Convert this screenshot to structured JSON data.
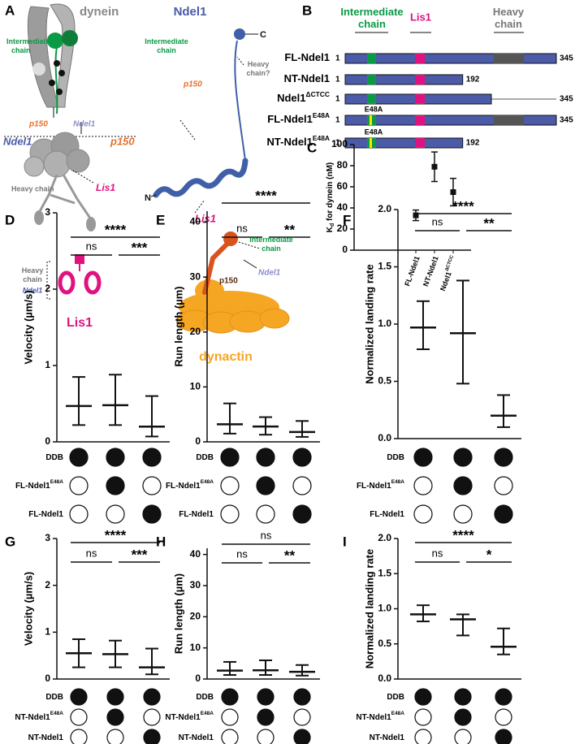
{
  "panel_labels": [
    "A",
    "B",
    "C",
    "D",
    "E",
    "F",
    "G",
    "H",
    "I"
  ],
  "panel_a": {
    "dynein": "dynein",
    "dynein_ic": [
      "Intermediate",
      "chain"
    ],
    "dynein_p150": "p150",
    "dynein_ndel1_small": "Ndel1",
    "dynein_ndel1": "Ndel1",
    "dynein_p150_big": "p150",
    "dynein_heavy_chain": "Heavy chain",
    "dynein_lis1": "Lis1",
    "lis1_heavy_chain": [
      "Heavy",
      "chain"
    ],
    "lis1_ndel1": "Ndel1",
    "lis1_title": "Lis1",
    "ndel1_title": "Ndel1",
    "ndel1_ic": [
      "Intermediate",
      "chain"
    ],
    "ndel1_p150": "p150",
    "ndel1_c": "C",
    "ndel1_heavy": [
      "Heavy",
      "chain?"
    ],
    "ndel1_n": "N",
    "ndel1_lis1": "Lis1",
    "dynactin_ic": [
      "Intermediate",
      "chain"
    ],
    "dynactin_p150": "p150",
    "dynactin_ndel1": "Ndel1",
    "dynactin_title": "dynactin"
  },
  "panel_b": {
    "headers": {
      "intermediate_chain": [
        "Intermediate",
        "chain"
      ],
      "lis1": "Lis1",
      "heavy_chain": [
        "Heavy",
        "chain"
      ]
    },
    "constructs": [
      {
        "name": "FL-Ndel1",
        "start": "1",
        "end": 345
      },
      {
        "name": "NT-Ndel1",
        "start": "1",
        "end": 192
      },
      {
        "name": "Ndel1",
        "sup": "ΔCTCC",
        "start": "1",
        "end": 345
      },
      {
        "name": "FL-Ndel1",
        "sup": "E48A",
        "start": "1",
        "end": 345,
        "mutation": "E48A"
      },
      {
        "name": "NT-Ndel1",
        "sup": "E48A",
        "start": "1",
        "end": 192,
        "mutation": "E48A"
      }
    ]
  },
  "chart_data": [
    {
      "type": "error_point",
      "ylabel": {
        "main": "K",
        "sub": "d",
        "rest": " for dynein (nM)"
      },
      "categories": [
        "FL-Ndel1",
        "NT-Ndel1",
        "Ndel1"
      ],
      "category_sups": [
        null,
        null,
        "ΔCTCC"
      ],
      "values": [
        33,
        79,
        55
      ],
      "errors": [
        5,
        14,
        13
      ],
      "ylim": [
        0,
        100
      ],
      "yticks": [
        0,
        20,
        40,
        60,
        80,
        100
      ]
    },
    {
      "type": "dot_plot",
      "ylabel": "Velocity (µm/s)",
      "ylim": [
        0,
        3
      ],
      "yticks": [
        0,
        1,
        2,
        3
      ],
      "median": [
        0.47,
        0.48,
        0.2
      ],
      "q1": [
        0.22,
        0.22,
        0.07
      ],
      "q3": [
        0.85,
        0.88,
        0.6
      ],
      "significance": [
        "****",
        "ns",
        "***"
      ],
      "conditions": [
        {
          "label": "DDB",
          "filled": [
            true,
            true,
            true
          ]
        },
        {
          "label": "FL-Ndel1",
          "sup": "E48A",
          "filled": [
            false,
            true,
            false
          ]
        },
        {
          "label": "FL-Ndel1",
          "filled": [
            false,
            false,
            true
          ]
        }
      ]
    },
    {
      "type": "dot_plot",
      "ylabel": "Run length (µm)",
      "ylim": [
        0,
        42
      ],
      "yticks": [
        0,
        10,
        20,
        30,
        40
      ],
      "median": [
        3.2,
        2.8,
        1.8
      ],
      "q1": [
        1.5,
        1.3,
        0.9
      ],
      "q3": [
        7,
        4.5,
        3.8
      ],
      "significance": [
        "****",
        "ns",
        "**"
      ],
      "conditions": [
        {
          "label": "DDB",
          "filled": [
            true,
            true,
            true
          ]
        },
        {
          "label": "FL-Ndel1",
          "sup": "E48A",
          "filled": [
            false,
            true,
            false
          ]
        },
        {
          "label": "FL-Ndel1",
          "filled": [
            false,
            false,
            true
          ]
        }
      ]
    },
    {
      "type": "dot_plot",
      "ylabel": "Normalized landing rate",
      "ylim": [
        0,
        2
      ],
      "yticks": [
        {
          "value": 0,
          "label": "0.0"
        },
        0.5,
        {
          "value": 1,
          "label": "1.0"
        },
        1.5,
        {
          "value": 2,
          "label": "2.0"
        }
      ],
      "median": [
        0.97,
        0.92,
        0.2
      ],
      "q1": [
        0.78,
        0.48,
        0.1
      ],
      "q3": [
        1.2,
        1.38,
        0.38
      ],
      "significance": [
        "****",
        "ns",
        "**"
      ],
      "conditions": [
        {
          "label": "DDB",
          "filled": [
            true,
            true,
            true
          ]
        },
        {
          "label": "FL-Ndel1",
          "sup": "E48A",
          "filled": [
            false,
            true,
            false
          ]
        },
        {
          "label": "FL-Ndel1",
          "filled": [
            false,
            false,
            true
          ]
        }
      ]
    },
    {
      "type": "dot_plot",
      "ylabel": "Velocity (µm/s)",
      "ylim": [
        0,
        3
      ],
      "yticks": [
        0,
        1,
        2,
        3
      ],
      "median": [
        0.55,
        0.53,
        0.25
      ],
      "q1": [
        0.25,
        0.25,
        0.1
      ],
      "q3": [
        0.85,
        0.82,
        0.65
      ],
      "significance": [
        "****",
        "ns",
        "***"
      ],
      "conditions": [
        {
          "label": "DDB",
          "filled": [
            true,
            true,
            true
          ]
        },
        {
          "label": "NT-Ndel1",
          "sup": "E48A",
          "filled": [
            false,
            true,
            false
          ]
        },
        {
          "label": "NT-Ndel1",
          "filled": [
            false,
            false,
            true
          ]
        }
      ]
    },
    {
      "type": "dot_plot",
      "ylabel": "Run length (µm)",
      "ylim": [
        0,
        42
      ],
      "yticks": [
        0,
        10,
        20,
        30,
        40
      ],
      "median": [
        2.7,
        2.8,
        2.3
      ],
      "q1": [
        1.3,
        1.3,
        1.1
      ],
      "q3": [
        5.5,
        6,
        4.5
      ],
      "significance": [
        "ns",
        "ns",
        "**"
      ],
      "conditions": [
        {
          "label": "DDB",
          "filled": [
            true,
            true,
            true
          ]
        },
        {
          "label": "NT-Ndel1",
          "sup": "E48A",
          "filled": [
            false,
            true,
            false
          ]
        },
        {
          "label": "NT-Ndel1",
          "filled": [
            false,
            false,
            true
          ]
        }
      ]
    },
    {
      "type": "dot_plot",
      "ylabel": "Normalized landing rate",
      "ylim": [
        0,
        2
      ],
      "yticks": [
        {
          "value": 0,
          "label": "0.0"
        },
        0.5,
        {
          "value": 1,
          "label": "1.0"
        },
        1.5,
        {
          "value": 2,
          "label": "2.0"
        }
      ],
      "median": [
        0.92,
        0.85,
        0.46
      ],
      "q1": [
        0.82,
        0.62,
        0.35
      ],
      "q3": [
        1.05,
        0.92,
        0.72
      ],
      "significance": [
        "****",
        "ns",
        "*"
      ],
      "conditions": [
        {
          "label": "DDB",
          "filled": [
            true,
            true,
            true
          ]
        },
        {
          "label": "NT-Ndel1",
          "sup": "E48A",
          "filled": [
            false,
            true,
            false
          ]
        },
        {
          "label": "NT-Ndel1",
          "filled": [
            false,
            false,
            true
          ]
        }
      ]
    }
  ]
}
